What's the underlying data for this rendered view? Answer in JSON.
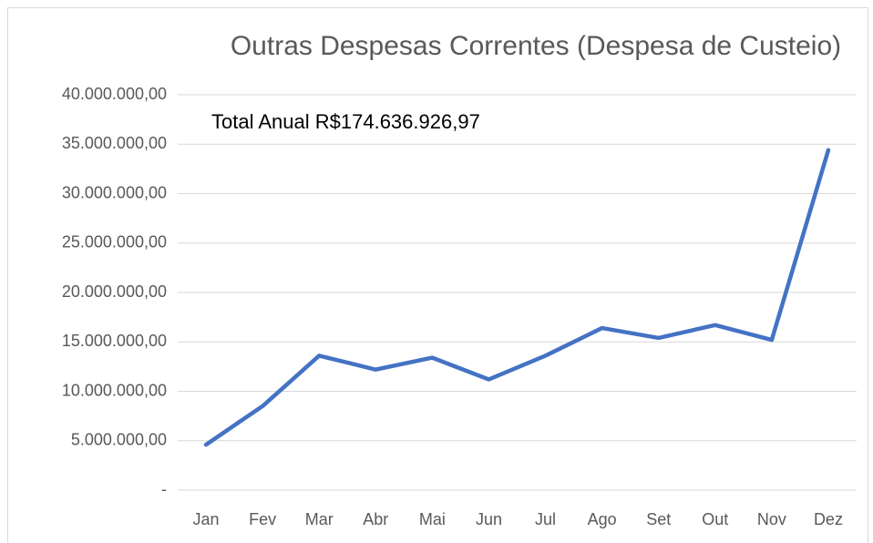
{
  "chart_data": {
    "type": "line",
    "title": "Outras Despesas Correntes (Despesa de Custeio)",
    "annotation": "Total Anual R$174.636.926,97",
    "categories": [
      "Jan",
      "Fev",
      "Mar",
      "Abr",
      "Mai",
      "Jun",
      "Jul",
      "Ago",
      "Set",
      "Out",
      "Nov",
      "Dez"
    ],
    "series": [
      {
        "name": "Outras Despesas Correntes",
        "color": "#4472c4",
        "values": [
          4600000,
          8500000,
          13600000,
          12200000,
          13400000,
          11200000,
          13600000,
          16400000,
          15400000,
          16700000,
          15200000,
          34400000
        ]
      }
    ],
    "ylim": [
      0,
      40000000
    ],
    "yticks": [
      {
        "value": 0,
        "label": "-"
      },
      {
        "value": 5000000,
        "label": "5.000.000,00"
      },
      {
        "value": 10000000,
        "label": "10.000.000,00"
      },
      {
        "value": 15000000,
        "label": "15.000.000,00"
      },
      {
        "value": 20000000,
        "label": "20.000.000,00"
      },
      {
        "value": 25000000,
        "label": "25.000.000,00"
      },
      {
        "value": 30000000,
        "label": "30.000.000,00"
      },
      {
        "value": 35000000,
        "label": "35.000.000,00"
      },
      {
        "value": 40000000,
        "label": "40.000.000,00"
      }
    ],
    "grid": true
  }
}
